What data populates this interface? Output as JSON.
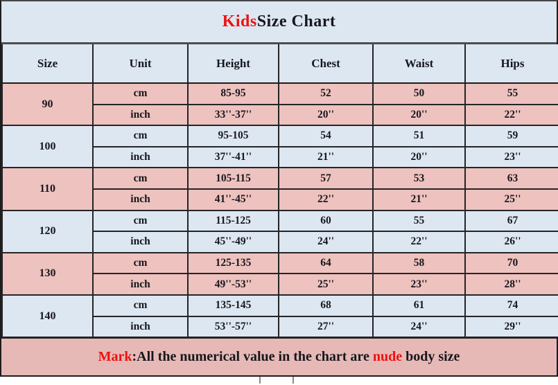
{
  "title": {
    "accent": "Kids",
    "rest": " Size Chart"
  },
  "columns": [
    "Size",
    "Unit",
    "Height",
    "Chest",
    "Waist",
    "Hips"
  ],
  "unit_labels": [
    "cm",
    "inch"
  ],
  "rows": [
    {
      "size": "90",
      "tone": "pink",
      "cm": [
        "85-95",
        "52",
        "50",
        "55"
      ],
      "inch": [
        "33''-37''",
        "20''",
        "20''",
        "22''"
      ]
    },
    {
      "size": "100",
      "tone": "blue",
      "cm": [
        "95-105",
        "54",
        "51",
        "59"
      ],
      "inch": [
        "37''-41''",
        "21''",
        "20''",
        "23''"
      ]
    },
    {
      "size": "110",
      "tone": "pink",
      "cm": [
        "105-115",
        "57",
        "53",
        "63"
      ],
      "inch": [
        "41''-45''",
        "22''",
        "21''",
        "25''"
      ]
    },
    {
      "size": "120",
      "tone": "blue",
      "cm": [
        "115-125",
        "60",
        "55",
        "67"
      ],
      "inch": [
        "45''-49''",
        "24''",
        "22''",
        "26''"
      ]
    },
    {
      "size": "130",
      "tone": "pink",
      "cm": [
        "125-135",
        "64",
        "58",
        "70"
      ],
      "inch": [
        "49''-53''",
        "25''",
        "23''",
        "28''"
      ]
    },
    {
      "size": "140",
      "tone": "blue",
      "cm": [
        "135-145",
        "68",
        "61",
        "74"
      ],
      "inch": [
        "53''-57''",
        "27''",
        "24''",
        "29''"
      ]
    }
  ],
  "footer": {
    "accent": "Mark",
    "text_mid": ":All the numerical value in the chart are ",
    "accent2": "nude",
    "text_end": " body size"
  },
  "colors": {
    "row_pink": "#eec2be",
    "row_blue": "#dde7f2",
    "footer_pink": "#e7b9b6",
    "accent_red": "#ee1111",
    "text": "#17171e",
    "border": "#242428"
  },
  "chart_data": {
    "type": "table",
    "title": "Kids Size Chart",
    "columns": [
      "Size",
      "Unit",
      "Height",
      "Chest",
      "Waist",
      "Hips"
    ],
    "rows": [
      [
        "90",
        "cm",
        "85-95",
        "52",
        "50",
        "55"
      ],
      [
        "90",
        "inch",
        "33''-37''",
        "20''",
        "20''",
        "22''"
      ],
      [
        "100",
        "cm",
        "95-105",
        "54",
        "51",
        "59"
      ],
      [
        "100",
        "inch",
        "37''-41''",
        "21''",
        "20''",
        "23''"
      ],
      [
        "110",
        "cm",
        "105-115",
        "57",
        "53",
        "63"
      ],
      [
        "110",
        "inch",
        "41''-45''",
        "22''",
        "21''",
        "25''"
      ],
      [
        "120",
        "cm",
        "115-125",
        "60",
        "55",
        "67"
      ],
      [
        "120",
        "inch",
        "45''-49''",
        "24''",
        "22''",
        "26''"
      ],
      [
        "130",
        "cm",
        "125-135",
        "64",
        "58",
        "70"
      ],
      [
        "130",
        "inch",
        "49''-53''",
        "25''",
        "23''",
        "28''"
      ],
      [
        "140",
        "cm",
        "135-145",
        "68",
        "61",
        "74"
      ],
      [
        "140",
        "inch",
        "53''-57''",
        "27''",
        "24''",
        "29''"
      ]
    ],
    "note": "Mark:All the numerical value in the chart are nude body size"
  }
}
